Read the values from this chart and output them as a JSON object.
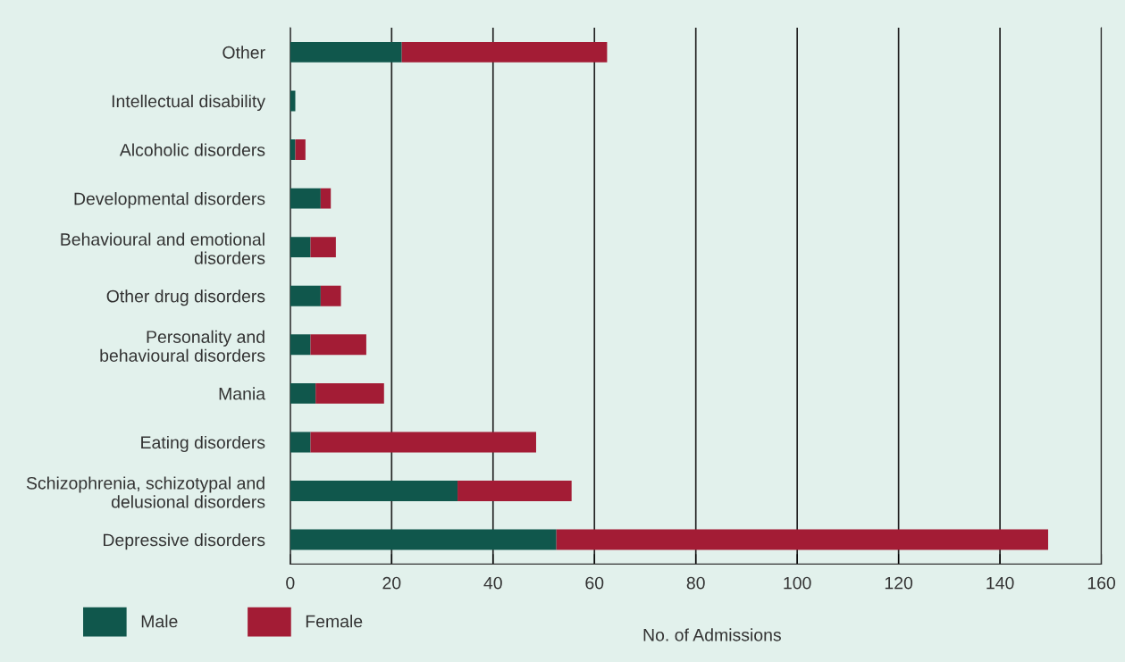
{
  "chart_data": {
    "type": "bar",
    "orientation": "horizontal",
    "stacked": true,
    "xlabel": "No. of Admissions",
    "categories": [
      "Other",
      "Intellectual disability",
      "Alcoholic disorders",
      "Developmental disorders",
      "Behavioural and emotional\ndisorders",
      "Other drug disorders",
      "Personality and\nbehavioural disorders",
      "Mania",
      "Eating disorders",
      "Schizophrenia, schizotypal and\ndelusional disorders",
      "Depressive disorders"
    ],
    "series": [
      {
        "name": "Male",
        "color": "#10574c",
        "values": [
          22,
          1,
          1,
          6,
          4,
          6,
          4,
          5,
          4,
          33,
          52.5
        ]
      },
      {
        "name": "Female",
        "color": "#a31c35",
        "values": [
          40.5,
          0,
          2,
          2,
          5,
          4,
          11,
          13.5,
          44.5,
          22.5,
          97
        ]
      }
    ],
    "xlim": [
      0,
      160
    ],
    "xticks": [
      0,
      20,
      40,
      60,
      80,
      100,
      120,
      140,
      160
    ],
    "grid": "x",
    "legend": "bottom left"
  }
}
